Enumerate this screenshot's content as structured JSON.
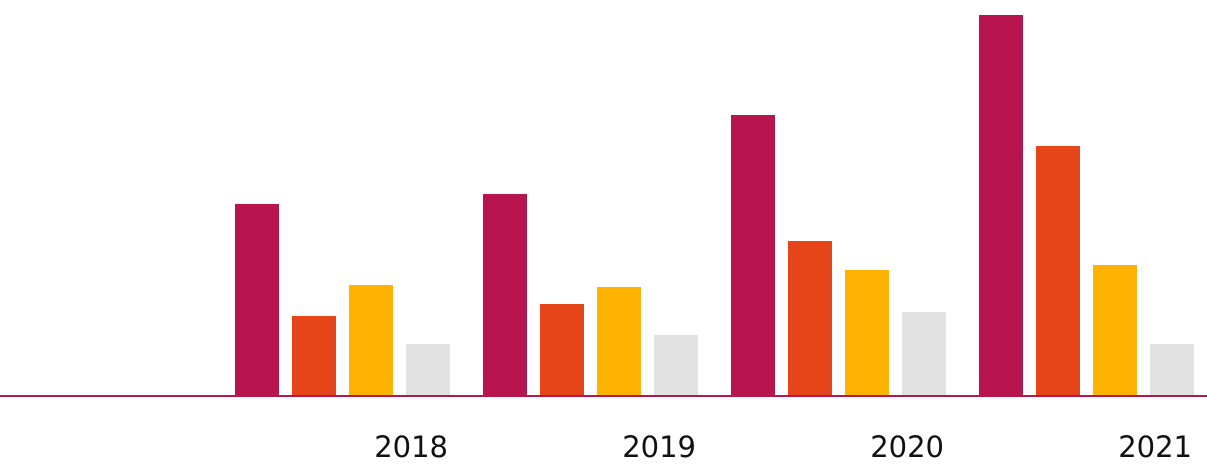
{
  "chart_data": {
    "type": "bar",
    "categories": [
      "2018",
      "2019",
      "2020",
      "2021"
    ],
    "series": [
      {
        "color": "#b8154f",
        "values": [
          192,
          202,
          281,
          381
        ]
      },
      {
        "color": "#e64519",
        "values": [
          80,
          92,
          155,
          250
        ]
      },
      {
        "color": "#ffb300",
        "values": [
          111,
          109,
          126,
          131
        ]
      },
      {
        "color": "#e2e2e2",
        "values": [
          52,
          61,
          84,
          52
        ]
      }
    ],
    "ylim": [
      0,
      381
    ],
    "grid": false
  }
}
